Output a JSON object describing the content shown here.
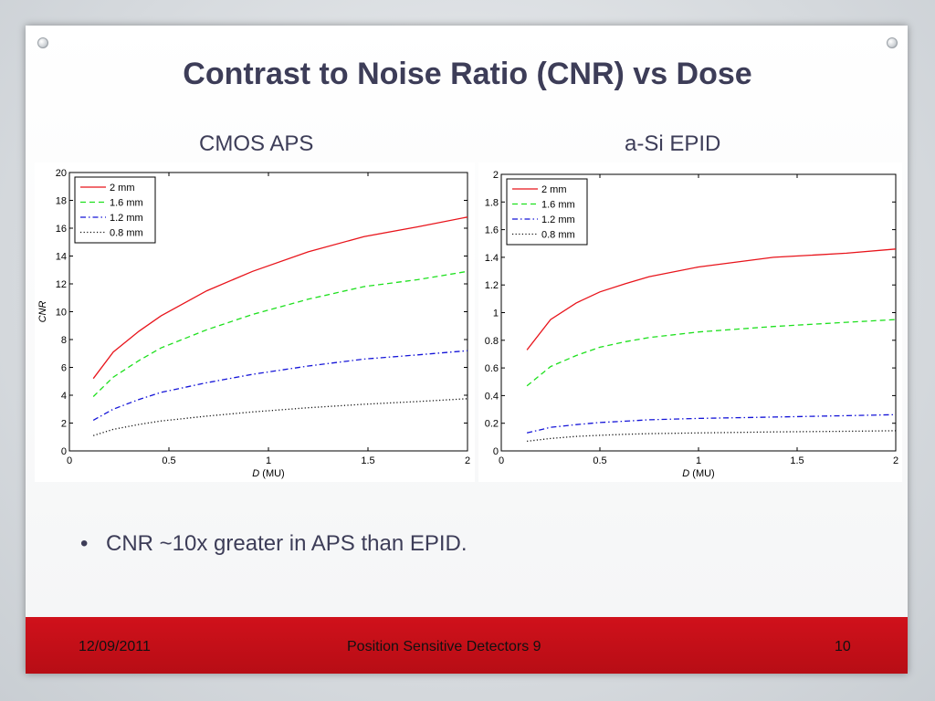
{
  "slide": {
    "title": "Contrast to Noise Ratio (CNR) vs Dose",
    "bullet": "CNR ~10x greater in APS than EPID.",
    "footer": {
      "date": "12/09/2011",
      "center": "Position Sensitive Detectors 9",
      "page": "10"
    }
  },
  "chart_data": [
    {
      "type": "line",
      "title": "CMOS APS",
      "xlabel_italic": "D",
      "xlabel_unit": "(MU)",
      "ylabel": "CNR",
      "xlim": [
        0,
        2
      ],
      "ylim": [
        0,
        20
      ],
      "xticks": [
        0,
        0.5,
        1,
        1.5,
        2
      ],
      "xtick_labels": [
        "0",
        "0.5",
        "1",
        "1.5",
        "2"
      ],
      "yticks": [
        0,
        2,
        4,
        6,
        8,
        10,
        12,
        14,
        16,
        18,
        20
      ],
      "ytick_labels": [
        "0",
        "2",
        "4",
        "6",
        "8",
        "10",
        "12",
        "14",
        "16",
        "18",
        "20"
      ],
      "legend_position": "top-left",
      "series": [
        {
          "name": "2 mm",
          "color": "#e8141b",
          "dash": "solid",
          "x": [
            0.12,
            0.22,
            0.35,
            0.46,
            0.69,
            0.92,
            1.2,
            1.48,
            1.75,
            2.0
          ],
          "y": [
            5.2,
            7.1,
            8.6,
            9.7,
            11.5,
            12.9,
            14.3,
            15.4,
            16.1,
            16.8
          ]
        },
        {
          "name": "1.6 mm",
          "color": "#1ee01e",
          "dash": "dashed",
          "x": [
            0.12,
            0.22,
            0.35,
            0.46,
            0.69,
            0.92,
            1.2,
            1.48,
            1.75,
            2.0
          ],
          "y": [
            3.9,
            5.3,
            6.5,
            7.4,
            8.7,
            9.8,
            10.9,
            11.8,
            12.3,
            12.9
          ]
        },
        {
          "name": "1.2 mm",
          "color": "#1515d8",
          "dash": "dashdot",
          "x": [
            0.12,
            0.22,
            0.35,
            0.46,
            0.69,
            0.92,
            1.2,
            1.48,
            1.75,
            2.0
          ],
          "y": [
            2.2,
            3.0,
            3.7,
            4.2,
            4.9,
            5.5,
            6.1,
            6.6,
            6.9,
            7.2
          ]
        },
        {
          "name": "0.8 mm",
          "color": "#111111",
          "dash": "dotted",
          "x": [
            0.12,
            0.22,
            0.35,
            0.46,
            0.69,
            0.92,
            1.2,
            1.48,
            1.75,
            2.0
          ],
          "y": [
            1.1,
            1.55,
            1.9,
            2.15,
            2.5,
            2.8,
            3.1,
            3.35,
            3.55,
            3.75
          ]
        }
      ]
    },
    {
      "type": "line",
      "title": "a-Si EPID",
      "xlabel_italic": "D",
      "xlabel_unit": "(MU)",
      "ylabel": "",
      "xlim": [
        0,
        2
      ],
      "ylim": [
        0,
        2
      ],
      "xticks": [
        0,
        0.5,
        1,
        1.5,
        2
      ],
      "xtick_labels": [
        "0",
        "0.5",
        "1",
        "1.5",
        "2"
      ],
      "yticks": [
        0,
        0.2,
        0.4,
        0.6,
        0.8,
        1,
        1.2,
        1.4,
        1.6,
        1.8,
        2
      ],
      "ytick_labels": [
        "0",
        "0.2",
        "0.4",
        "0.6",
        "0.8",
        "1",
        "1.2",
        "1.4",
        "1.6",
        "1.8",
        "2"
      ],
      "legend_position": "top-left",
      "series": [
        {
          "name": "2 mm",
          "color": "#e8141b",
          "dash": "solid",
          "x": [
            0.13,
            0.25,
            0.38,
            0.5,
            0.63,
            0.75,
            1.0,
            1.38,
            1.75,
            2.0
          ],
          "y": [
            0.73,
            0.95,
            1.07,
            1.15,
            1.21,
            1.26,
            1.33,
            1.4,
            1.43,
            1.46
          ]
        },
        {
          "name": "1.6 mm",
          "color": "#1ee01e",
          "dash": "dashed",
          "x": [
            0.13,
            0.25,
            0.38,
            0.5,
            0.63,
            0.75,
            1.0,
            1.38,
            1.75,
            2.0
          ],
          "y": [
            0.47,
            0.61,
            0.69,
            0.75,
            0.79,
            0.82,
            0.86,
            0.9,
            0.93,
            0.95
          ]
        },
        {
          "name": "1.2 mm",
          "color": "#1515d8",
          "dash": "dashdot",
          "x": [
            0.13,
            0.25,
            0.38,
            0.5,
            0.63,
            0.75,
            1.0,
            1.38,
            1.75,
            2.0
          ],
          "y": [
            0.13,
            0.17,
            0.19,
            0.205,
            0.215,
            0.225,
            0.235,
            0.245,
            0.255,
            0.262
          ]
        },
        {
          "name": "0.8 mm",
          "color": "#111111",
          "dash": "dotted",
          "x": [
            0.13,
            0.25,
            0.38,
            0.5,
            0.63,
            0.75,
            1.0,
            1.38,
            1.75,
            2.0
          ],
          "y": [
            0.07,
            0.09,
            0.105,
            0.113,
            0.12,
            0.125,
            0.13,
            0.137,
            0.142,
            0.146
          ]
        }
      ]
    }
  ]
}
